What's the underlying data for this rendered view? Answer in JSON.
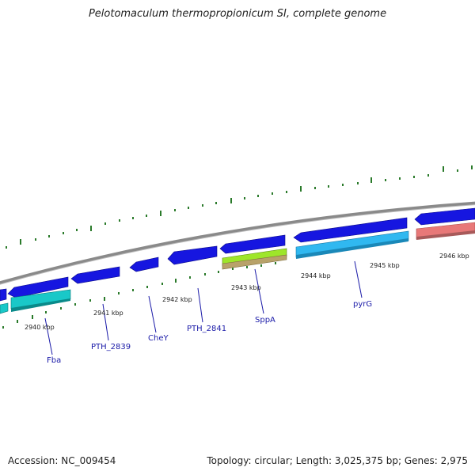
{
  "title": "Pelotomaculum thermopropionicum SI, complete genome",
  "accession": "Accession: NC_009454",
  "summary": "Topology: circular; Length: 3,025,375 bp; Genes: 2,975",
  "kbp_labels": [
    "2940 kbp",
    "2941 kbp",
    "2942 kbp",
    "2943 kbp",
    "2944 kbp",
    "2945 kbp",
    "2946 kbp"
  ],
  "gene_labels": [
    "Fba",
    "PTH_2839",
    "CheY",
    "PTH_2841",
    "SppA",
    "pyrG"
  ],
  "colors": {
    "backbone": "#888888",
    "gene_forward": "#1616e0",
    "gene_cyan": "#19c8c8",
    "gene_lightblue": "#30b8f0",
    "gene_green": "#9ee62a",
    "gene_tan": "#b8a26a",
    "gene_salmon": "#e87878",
    "ticks": "#2a7a2a"
  }
}
